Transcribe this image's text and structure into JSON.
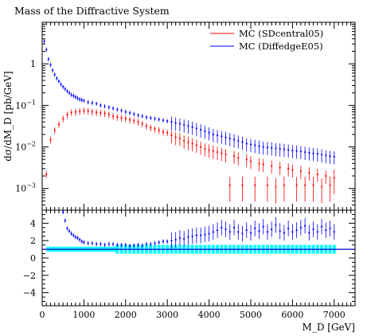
{
  "chart_data": [
    {
      "type": "scatter",
      "panel": "main",
      "title": "Mass of the Diffractive System",
      "ylabel": "dσ/dM_D [pb/GeV]",
      "yscale": "log",
      "ylim": [
        0.0003,
        10
      ],
      "xlim": [
        0,
        7500
      ],
      "yticks": [
        {
          "v": 1,
          "label": "1"
        },
        {
          "v": 0.1,
          "label": "10^-1"
        },
        {
          "v": 0.01,
          "label": "10^-2"
        },
        {
          "v": 0.001,
          "label": "10^-3"
        }
      ],
      "legend_position": "top-right",
      "series": [
        {
          "name": "MC (SDcentral05)",
          "color": "#ff0000",
          "x": [
            100,
            200,
            300,
            400,
            500,
            600,
            700,
            800,
            900,
            1000,
            1100,
            1200,
            1300,
            1400,
            1500,
            1600,
            1700,
            1800,
            1900,
            2000,
            2100,
            2200,
            2300,
            2400,
            2500,
            2600,
            2700,
            2800,
            2900,
            3000,
            3100,
            3200,
            3300,
            3400,
            3500,
            3600,
            3700,
            3800,
            3900,
            4000,
            4100,
            4200,
            4300,
            4400,
            4500,
            4600,
            4700,
            4800,
            4900,
            5000,
            5100,
            5200,
            5300,
            5400,
            5500,
            5600,
            5700,
            5800,
            5900,
            6000,
            6100,
            6200,
            6300,
            6400,
            6500,
            6600,
            6700,
            6800,
            6900,
            7000
          ],
          "y": [
            0.0022,
            0.015,
            0.025,
            0.035,
            0.048,
            0.06,
            0.068,
            0.07,
            0.072,
            0.075,
            0.073,
            0.07,
            0.068,
            0.066,
            0.064,
            0.06,
            0.055,
            0.052,
            0.05,
            0.048,
            0.045,
            0.043,
            0.04,
            0.036,
            0.032,
            0.029,
            0.027,
            0.025,
            0.023,
            0.022,
            0.019,
            0.017,
            0.016,
            0.014,
            0.013,
            0.012,
            0.011,
            0.01,
            0.009,
            0.0085,
            0.008,
            0.0075,
            0.007,
            0.0065,
            0.0012,
            0.006,
            0.0055,
            0.0012,
            0.005,
            0.0045,
            0.0012,
            0.004,
            0.0038,
            0.0012,
            0.0035,
            0.0011,
            0.0032,
            0.0012,
            0.003,
            0.0028,
            0.0012,
            0.0026,
            0.0012,
            0.0024,
            0.0012,
            0.0022,
            0.0011,
            0.002,
            0.0012,
            0.0018
          ]
        },
        {
          "name": "MC (DiffedgeE05)",
          "color": "#0000ff",
          "x": [
            50,
            100,
            150,
            200,
            250,
            300,
            350,
            400,
            450,
            500,
            550,
            600,
            650,
            700,
            750,
            800,
            850,
            900,
            950,
            1000,
            1100,
            1200,
            1300,
            1400,
            1500,
            1600,
            1700,
            1800,
            1900,
            2000,
            2100,
            2200,
            2300,
            2400,
            2500,
            2600,
            2700,
            2800,
            2900,
            3000,
            3100,
            3200,
            3300,
            3400,
            3500,
            3600,
            3700,
            3800,
            3900,
            4000,
            4100,
            4200,
            4300,
            4400,
            4500,
            4600,
            4700,
            4800,
            4900,
            5000,
            5100,
            5200,
            5300,
            5400,
            5500,
            5600,
            5700,
            5800,
            5900,
            6000,
            6100,
            6200,
            6300,
            6400,
            6500,
            6600,
            6700,
            6800,
            6900,
            7000
          ],
          "y": [
            3.5,
            2.2,
            1.3,
            0.95,
            0.7,
            0.55,
            0.45,
            0.38,
            0.32,
            0.28,
            0.25,
            0.22,
            0.2,
            0.18,
            0.17,
            0.16,
            0.15,
            0.14,
            0.135,
            0.13,
            0.12,
            0.115,
            0.11,
            0.1,
            0.095,
            0.09,
            0.085,
            0.08,
            0.075,
            0.07,
            0.066,
            0.062,
            0.058,
            0.055,
            0.052,
            0.05,
            0.048,
            0.046,
            0.044,
            0.042,
            0.04,
            0.038,
            0.036,
            0.034,
            0.032,
            0.03,
            0.028,
            0.026,
            0.024,
            0.022,
            0.02,
            0.019,
            0.018,
            0.017,
            0.016,
            0.015,
            0.014,
            0.013,
            0.012,
            0.0115,
            0.011,
            0.0105,
            0.01,
            0.0098,
            0.0095,
            0.0092,
            0.009,
            0.0088,
            0.0085,
            0.0082,
            0.008,
            0.0078,
            0.0075,
            0.0072,
            0.007,
            0.0068,
            0.0065,
            0.0062,
            0.006,
            0.0058
          ]
        }
      ]
    },
    {
      "type": "scatter",
      "panel": "ratio",
      "xlabel": "M_D [GeV]",
      "xlim": [
        0,
        7500
      ],
      "ylim": [
        -5.5,
        5.5
      ],
      "xticks": [
        0,
        1000,
        2000,
        3000,
        4000,
        5000,
        6000,
        7000
      ],
      "yticks": [
        4,
        2,
        0,
        -2,
        -4
      ],
      "reference_line": 1,
      "band_color": "#00ffff",
      "ratio_series": {
        "name": "MC (DiffedgeE05)",
        "color": "#0000ff",
        "x": [
          500,
          550,
          600,
          650,
          700,
          750,
          800,
          850,
          900,
          950,
          1000,
          1100,
          1200,
          1300,
          1400,
          1500,
          1600,
          1700,
          1800,
          1900,
          2000,
          2100,
          2200,
          2300,
          2400,
          2500,
          2600,
          2700,
          2800,
          2900,
          3000,
          3100,
          3200,
          3300,
          3400,
          3500,
          3600,
          3700,
          3800,
          3900,
          4000,
          4100,
          4200,
          4300,
          4400,
          4500,
          4600,
          4700,
          4800,
          4900,
          5000,
          5100,
          5200,
          5300,
          5400,
          5500,
          5600,
          5700,
          5800,
          5900,
          6000,
          6100,
          6200,
          6300,
          6400,
          6500,
          6600,
          6700,
          6800,
          6900,
          7000
        ],
        "y": [
          5.3,
          4.3,
          3.4,
          3.1,
          2.8,
          2.6,
          2.4,
          2.3,
          2.1,
          1.9,
          1.8,
          1.7,
          1.7,
          1.6,
          1.6,
          1.5,
          1.6,
          1.6,
          1.5,
          1.5,
          1.5,
          1.4,
          1.45,
          1.5,
          1.45,
          1.6,
          1.6,
          1.7,
          1.8,
          1.9,
          1.9,
          2.0,
          2.1,
          2.3,
          2.2,
          2.4,
          2.5,
          2.6,
          2.6,
          2.7,
          2.8,
          3.0,
          3.2,
          3.5,
          3.3,
          3.0,
          3.5,
          3.0,
          2.8,
          3.2,
          2.9,
          3.4,
          3.1,
          3.6,
          3.0,
          3.3,
          3.8,
          3.1,
          2.9,
          3.4,
          3.0,
          3.2,
          3.5,
          3.7,
          2.9,
          3.3,
          3.0,
          3.6,
          3.2,
          3.4,
          3.0
        ]
      }
    }
  ]
}
